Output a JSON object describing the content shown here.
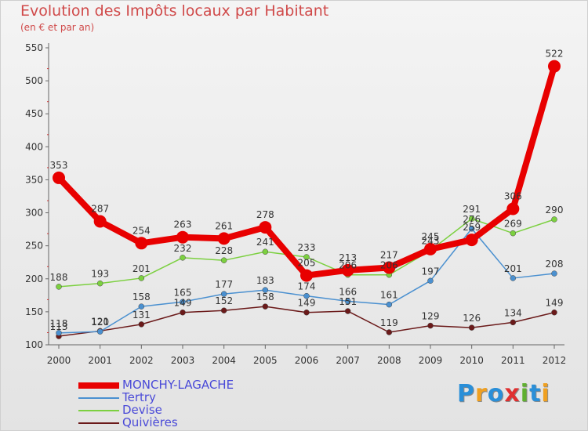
{
  "header": {
    "title": "Evolution des Impôts locaux par Habitant",
    "subtitle": "(en € et par an)"
  },
  "logo": {
    "text": "Proxiti",
    "letters": [
      {
        "ch": "P",
        "color": "#2a8fd8"
      },
      {
        "ch": "r",
        "color": "#f0a020"
      },
      {
        "ch": "o",
        "color": "#2a8fd8"
      },
      {
        "ch": "x",
        "color": "#e03030"
      },
      {
        "ch": "i",
        "color": "#60b030"
      },
      {
        "ch": "t",
        "color": "#2a8fd8"
      },
      {
        "ch": "i",
        "color": "#f0a020"
      }
    ]
  },
  "chart_data": {
    "type": "line",
    "title": "Evolution des Impôts locaux par Habitant",
    "subtitle": "(en € et par an)",
    "xlabel": "",
    "ylabel": "",
    "categories": [
      "2000",
      "2001",
      "2002",
      "2003",
      "2004",
      "2005",
      "2006",
      "2007",
      "2008",
      "2009",
      "2010",
      "2011",
      "2012"
    ],
    "ylim": [
      100,
      550
    ],
    "yticks": [
      100,
      150,
      200,
      250,
      300,
      350,
      400,
      450,
      500,
      550
    ],
    "grid": false,
    "legend_position": "bottom-left",
    "series": [
      {
        "name": "MONCHY-LAGACHE",
        "color": "#e80000",
        "width": 8,
        "marker": 8,
        "values": [
          353,
          287,
          254,
          263,
          261,
          278,
          205,
          213,
          217,
          245,
          259,
          306,
          522
        ],
        "labels": [
          "353",
          "287",
          "254",
          "263",
          "261",
          "278",
          "205",
          "213",
          "217",
          "245",
          "259",
          "306",
          "522"
        ]
      },
      {
        "name": "Tertry",
        "color": "#4a90d0",
        "width": 1.5,
        "marker": 3.5,
        "values": [
          118,
          120,
          158,
          165,
          177,
          183,
          174,
          166,
          161,
          197,
          276,
          201,
          208
        ],
        "labels": [
          "118",
          "120",
          "158",
          "165",
          "177",
          "183",
          "174",
          "166",
          "161",
          "197",
          "276",
          "201",
          "208"
        ]
      },
      {
        "name": "Devise",
        "color": "#7cd040",
        "width": 1.5,
        "marker": 3.5,
        "values": [
          188,
          193,
          201,
          232,
          228,
          241,
          233,
          206,
          206,
          243,
          291,
          269,
          290
        ],
        "labels": [
          "188",
          "193",
          "201",
          "232",
          "228",
          "241",
          "233",
          "206",
          "206",
          "243",
          "291",
          "269",
          "290"
        ]
      },
      {
        "name": "Quivières",
        "color": "#6b1a1a",
        "width": 1.5,
        "marker": 3.5,
        "values": [
          113,
          121,
          131,
          149,
          152,
          158,
          149,
          151,
          119,
          129,
          126,
          134,
          149
        ],
        "labels": [
          "113",
          "121",
          "131",
          "149",
          "152",
          "158",
          "149",
          "151",
          "119",
          "129",
          "126",
          "134",
          "149"
        ]
      }
    ]
  }
}
